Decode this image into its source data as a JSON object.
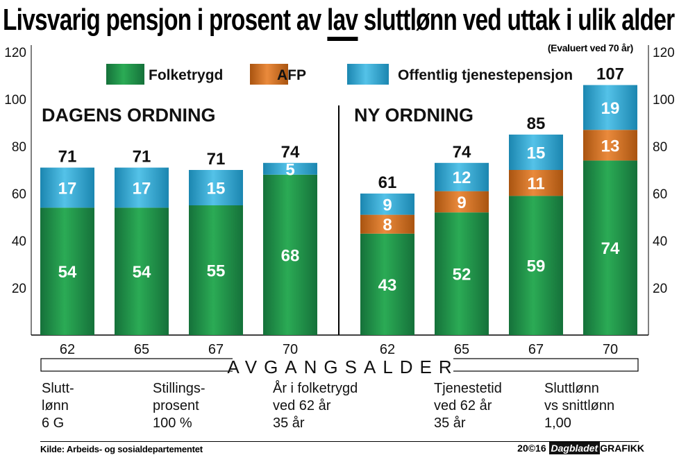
{
  "title_parts": {
    "before": "Livsvarig pensjon i prosent av ",
    "underlined": "lav",
    "after": " sluttlønn ved uttak i ulik alder"
  },
  "subtitle": "(Evaluert ved 70 år)",
  "legend": [
    {
      "label": "Folketrygd",
      "color": "#1e8a43"
    },
    {
      "label": "AFP",
      "color": "#d06a1c"
    },
    {
      "label": "Offentlig tjenestepensjon",
      "color": "#2aa6d4"
    }
  ],
  "panel_titles": [
    "DAGENS ORDNING",
    "NY ORDNING"
  ],
  "x_axis_title": "AVGANGSALDER",
  "y_ticks": [
    "20",
    "40",
    "60",
    "80",
    "100",
    "120"
  ],
  "chart_data": {
    "type": "bar",
    "stacked": true,
    "title": "Livsvarig pensjon i prosent av lav sluttlønn ved uttak i ulik alder",
    "subtitle": "(Evaluert ved 70 år)",
    "xlabel": "AVGANGSALDER",
    "ylabel": "",
    "ylim": [
      0,
      120
    ],
    "y_ticks": [
      20,
      40,
      60,
      80,
      100,
      120
    ],
    "legend_position": "top",
    "groups": [
      {
        "name": "DAGENS ORDNING",
        "categories": [
          "62",
          "65",
          "67",
          "70"
        ],
        "series": [
          {
            "name": "Folketrygd",
            "values": [
              54,
              54,
              55,
              68
            ]
          },
          {
            "name": "AFP",
            "values": [
              0,
              0,
              0,
              0
            ]
          },
          {
            "name": "Offentlig tjenestepensjon",
            "values": [
              17,
              17,
              15,
              5
            ]
          }
        ],
        "totals": [
          71,
          71,
          71,
          74
        ]
      },
      {
        "name": "NY ORDNING",
        "categories": [
          "62",
          "65",
          "67",
          "70"
        ],
        "series": [
          {
            "name": "Folketrygd",
            "values": [
              43,
              52,
              59,
              74
            ]
          },
          {
            "name": "AFP",
            "values": [
              8,
              9,
              11,
              13
            ]
          },
          {
            "name": "Offentlig tjenestepensjon",
            "values": [
              9,
              12,
              15,
              19
            ]
          }
        ],
        "totals": [
          61,
          74,
          85,
          107
        ]
      }
    ]
  },
  "parameters": [
    {
      "lines": [
        "Slutt-",
        "lønn",
        "6 G"
      ]
    },
    {
      "lines": [
        "Stillings-",
        "prosent",
        "100 %"
      ]
    },
    {
      "lines": [
        "År i folketrygd",
        "ved 62 år",
        "35 år"
      ]
    },
    {
      "lines": [
        "Tjenestetid",
        "ved 62 år",
        "35 år"
      ]
    },
    {
      "lines": [
        "Sluttlønn",
        "vs snittlønn",
        "1,00"
      ]
    }
  ],
  "source": "Kilde: Arbeids- og sosialdepartementet",
  "credit": {
    "year": "20©16",
    "brand": "Dagbladet",
    "dept": "GRAFIKK"
  }
}
